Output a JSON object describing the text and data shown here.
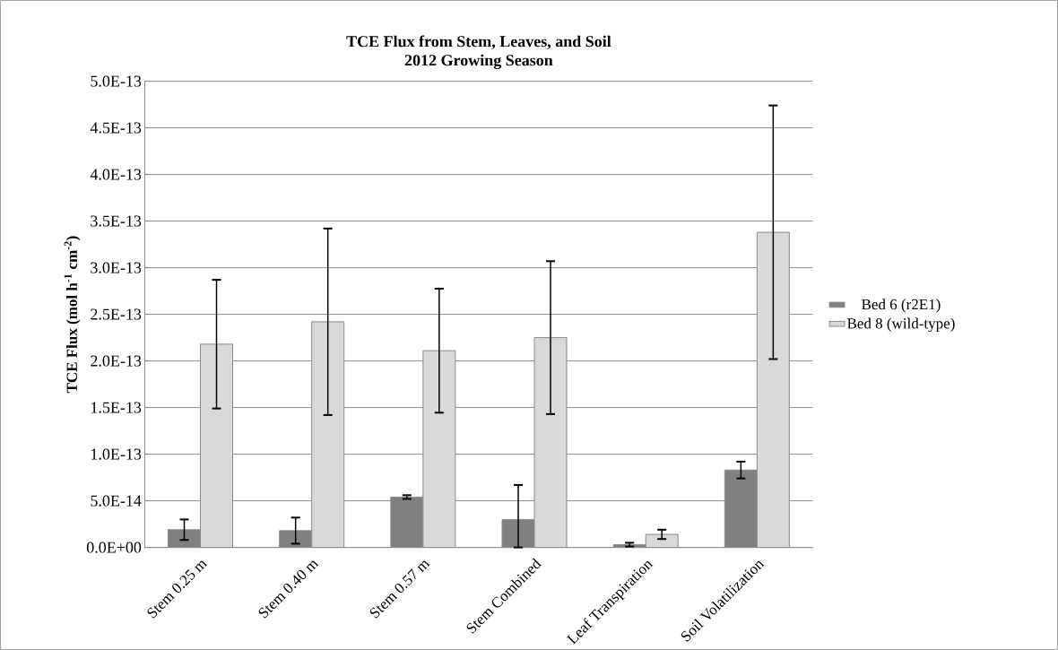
{
  "chart_data": {
    "type": "bar",
    "title": "TCE Flux from Stem, Leaves, and Soil",
    "subtitle": "2012 Growing Season",
    "ylabel": "TCE Flux (mol h$^{-1}$ cm$^{-2}$)",
    "categories": [
      "Stem 0.25 m",
      "Stem 0.40 m",
      "Stem 0.57 m",
      "Stem Combined",
      "Leaf Transpiration",
      "Soil Volatilization"
    ],
    "series": [
      {
        "name": "Bed 6 (r2E1)",
        "color": "#808080",
        "values": [
          1.9e-14,
          1.8e-14,
          5.4e-14,
          3e-14,
          3e-15,
          8.3e-14
        ],
        "errors": [
          1.1e-14,
          1.4e-14,
          2e-15,
          [
            0,
            6.7e-14
          ],
          2e-15,
          9e-15
        ]
      },
      {
        "name": "Bed 8 (wild-type)",
        "color": "#d9d9d9",
        "values": [
          2.18e-13,
          2.42e-13,
          2.11e-13,
          2.25e-13,
          1.4e-14,
          3.38e-13
        ],
        "errors": [
          6.9e-14,
          1e-13,
          6.65e-14,
          8.2e-14,
          5e-15,
          1.36e-13
        ]
      }
    ],
    "ylim": [
      0,
      5e-13
    ],
    "yticks": [
      {
        "value": 0,
        "label": "0.0E+00"
      },
      {
        "value": 5e-14,
        "label": "5.0E-14"
      },
      {
        "value": 1e-13,
        "label": "1.0E-13"
      },
      {
        "value": 1.5e-13,
        "label": "1.5E-13"
      },
      {
        "value": 2e-13,
        "label": "2.0E-13"
      },
      {
        "value": 2.5e-13,
        "label": "2.5E-13"
      },
      {
        "value": 3e-13,
        "label": "3.0E-13"
      },
      {
        "value": 3.5e-13,
        "label": "3.5E-13"
      },
      {
        "value": 4e-13,
        "label": "4.0E-13"
      },
      {
        "value": 4.5e-13,
        "label": "4.5E-13"
      },
      {
        "value": 5e-13,
        "label": "5.0E-13"
      }
    ],
    "grid": "y",
    "legend": "right"
  }
}
